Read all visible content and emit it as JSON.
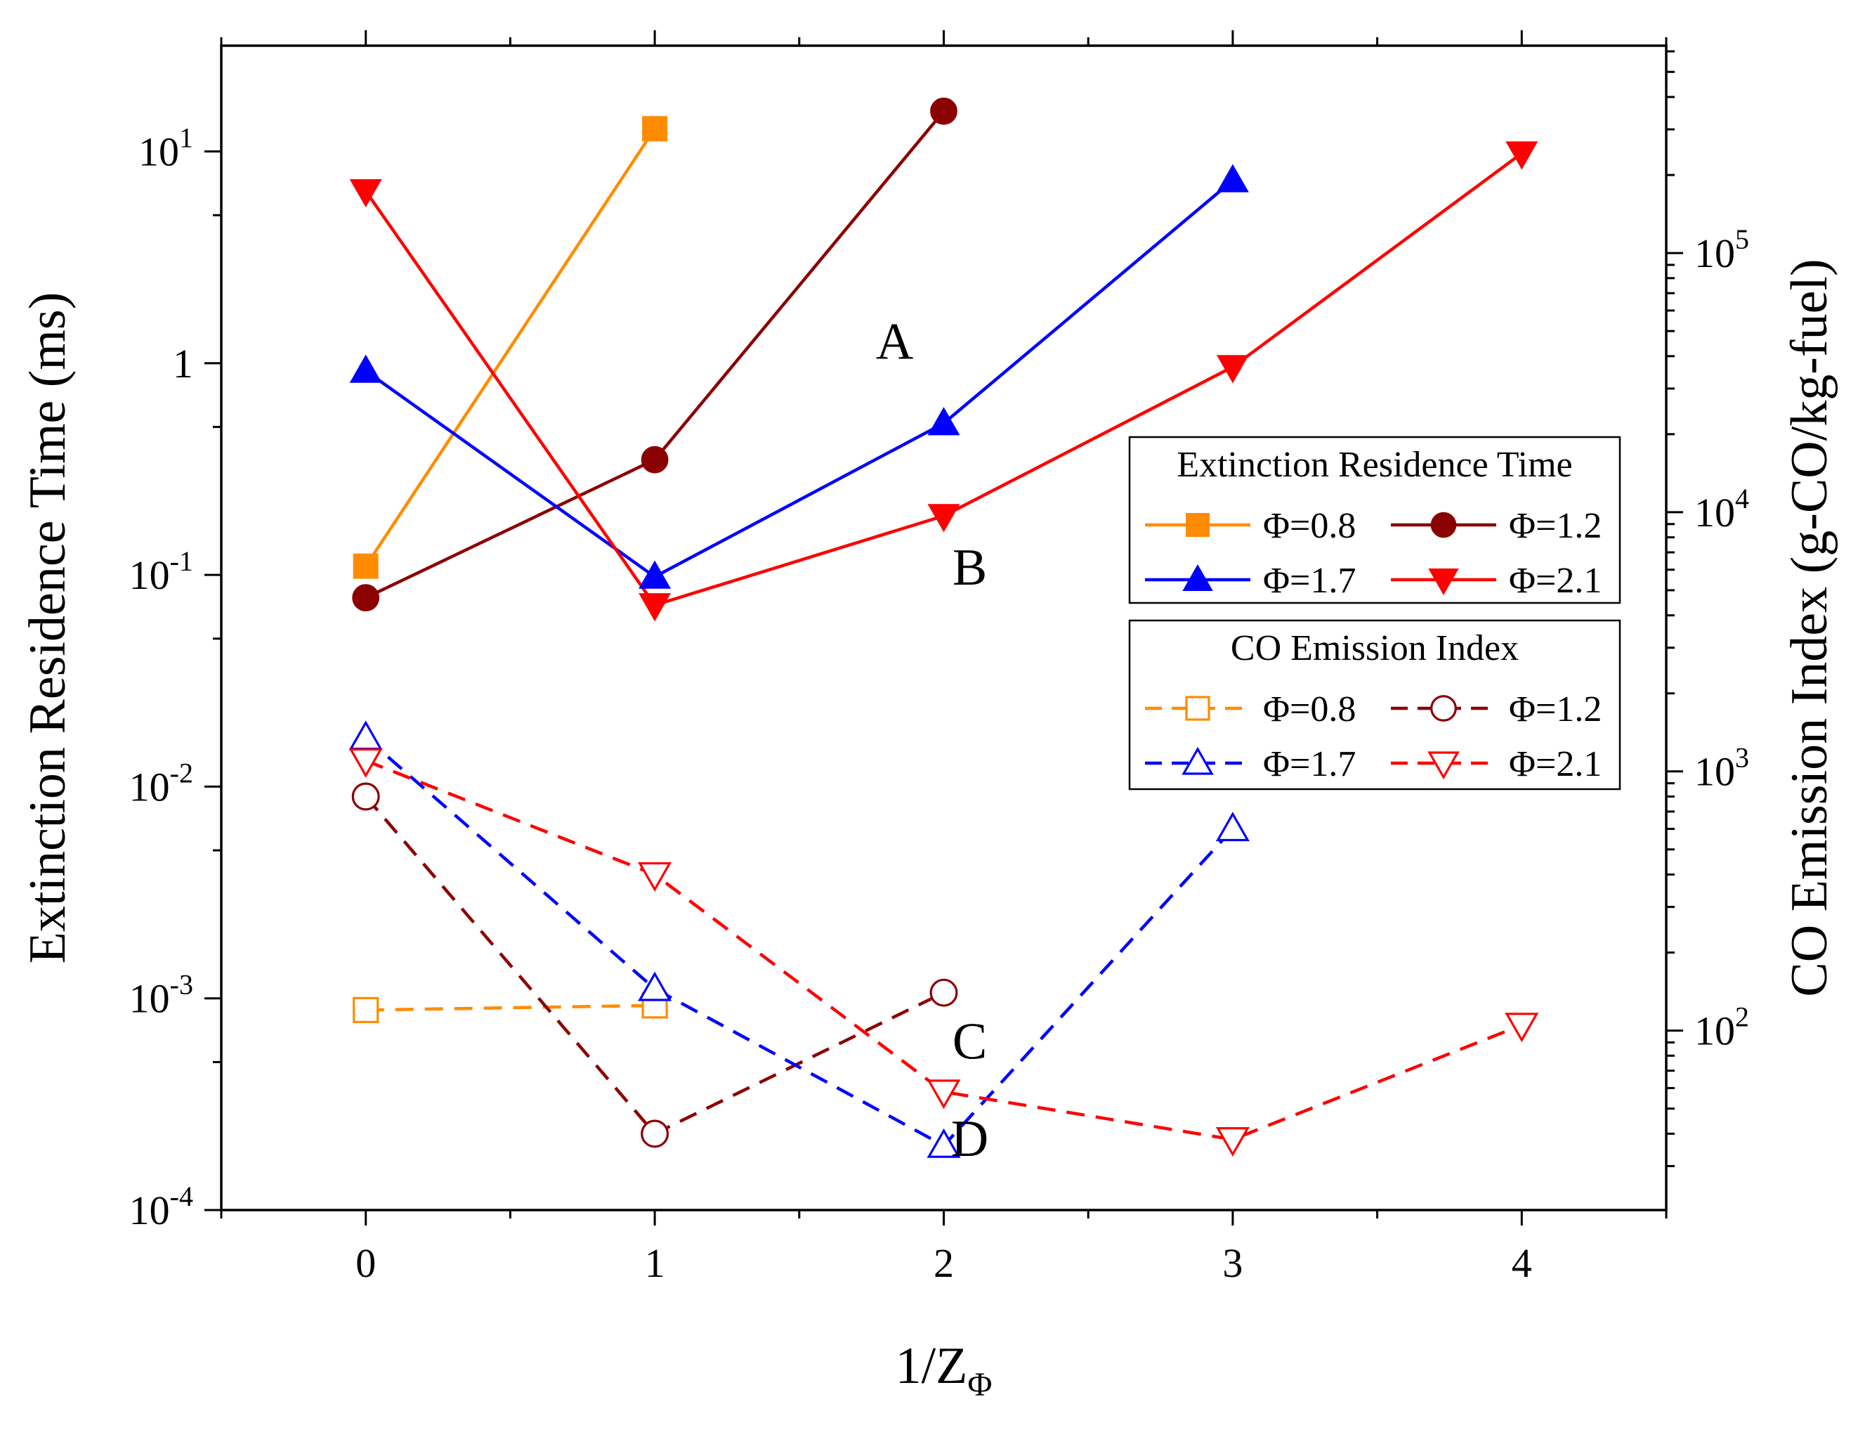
{
  "chart_data": {
    "type": "line",
    "x_label_main": "1/Z",
    "x_label_sub": "Φ",
    "y_left_label": "Extinction Residence Time (ms)",
    "y_right_label": "CO Emission Index (g-CO/kg-fuel)",
    "x_range": [
      -0.5,
      4.5
    ],
    "x_ticks": [
      0,
      1,
      2,
      3,
      4
    ],
    "x_tick_labels": [
      "0",
      "1",
      "2",
      "3",
      "4"
    ],
    "y_left_scale": "log",
    "y_left_range": [
      0.0001,
      31.6
    ],
    "y_left_ticks": [
      {
        "value": 0.0001,
        "base": "10",
        "exp": "-4"
      },
      {
        "value": 0.001,
        "base": "10",
        "exp": "-3"
      },
      {
        "value": 0.01,
        "base": "10",
        "exp": "-2"
      },
      {
        "value": 0.1,
        "base": "10",
        "exp": "-1"
      },
      {
        "value": 1,
        "base": "1",
        "exp": ""
      },
      {
        "value": 10,
        "base": "10",
        "exp": "1"
      }
    ],
    "y_right_scale": "log",
    "y_right_range": [
      20.3,
      631000
    ],
    "y_right_ticks": [
      {
        "value": 100,
        "base": "10",
        "exp": "2"
      },
      {
        "value": 1000,
        "base": "10",
        "exp": "3"
      },
      {
        "value": 10000,
        "base": "10",
        "exp": "4"
      },
      {
        "value": 100000,
        "base": "10",
        "exp": "5"
      }
    ],
    "series": [
      {
        "name": "Φ=0.8",
        "group": "ert",
        "axis": "left",
        "color": "#FF8C00",
        "marker": "square",
        "filled": true,
        "dashed": false,
        "x": [
          0,
          1
        ],
        "y": [
          0.11,
          12.8
        ]
      },
      {
        "name": "Φ=1.2",
        "group": "ert",
        "axis": "left",
        "color": "#8B0000",
        "marker": "circle",
        "filled": true,
        "dashed": false,
        "x": [
          0,
          1,
          2
        ],
        "y": [
          0.078,
          0.35,
          15.5
        ]
      },
      {
        "name": "Φ=1.7",
        "group": "ert",
        "axis": "left",
        "color": "#0000FF",
        "marker": "triangle-up",
        "filled": true,
        "dashed": false,
        "x": [
          0,
          1,
          2,
          3
        ],
        "y": [
          0.92,
          0.098,
          0.52,
          7.3
        ]
      },
      {
        "name": "Φ=2.1",
        "group": "ert",
        "axis": "left",
        "color": "#FF0000",
        "marker": "triangle-down",
        "filled": true,
        "dashed": false,
        "x": [
          0,
          1,
          2,
          3,
          4
        ],
        "y": [
          6.5,
          0.072,
          0.19,
          0.96,
          9.8
        ]
      },
      {
        "name": "Φ=0.8",
        "group": "co",
        "axis": "right",
        "color": "#FF8C00",
        "marker": "square",
        "filled": false,
        "dashed": true,
        "x": [
          0,
          1
        ],
        "y": [
          120,
          125
        ]
      },
      {
        "name": "Φ=1.2",
        "group": "co",
        "axis": "right",
        "color": "#8B0000",
        "marker": "circle",
        "filled": false,
        "dashed": true,
        "x": [
          0,
          1,
          2
        ],
        "y": [
          800,
          40,
          140
        ]
      },
      {
        "name": "Φ=1.7",
        "group": "co",
        "axis": "right",
        "color": "#0000FF",
        "marker": "triangle-up",
        "filled": false,
        "dashed": true,
        "x": [
          0,
          1,
          2,
          3
        ],
        "y": [
          1350,
          145,
          36,
          600
        ]
      },
      {
        "name": "Φ=2.1",
        "group": "co",
        "axis": "right",
        "color": "#FF0000",
        "marker": "triangle-down",
        "filled": false,
        "dashed": true,
        "x": [
          0,
          1,
          2,
          3,
          4
        ],
        "y": [
          1100,
          400,
          58,
          38,
          105
        ]
      }
    ],
    "legend": [
      {
        "title": "Extinction Residence Time",
        "group": "ert",
        "placement": "upper-right"
      },
      {
        "title": "CO Emission Index",
        "group": "co",
        "placement": "middle-right"
      }
    ],
    "annotations": [
      {
        "text": "A",
        "x": 1.83,
        "y_left": 1.05
      },
      {
        "text": "B",
        "x": 2.09,
        "y_left": 0.09
      },
      {
        "text": "C",
        "x": 2.09,
        "y_left": 0.00052
      },
      {
        "text": "D",
        "x": 2.09,
        "y_left": 0.00018
      }
    ]
  }
}
